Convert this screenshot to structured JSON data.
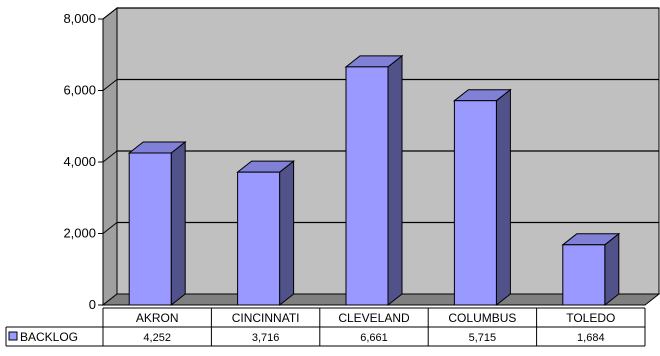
{
  "chart_data": {
    "type": "bar",
    "title": "",
    "xlabel": "",
    "ylabel": "",
    "categories": [
      "AKRON",
      "CINCINNATI",
      "CLEVELAND",
      "COLUMBUS",
      "TOLEDO"
    ],
    "series": [
      {
        "name": "BACKLOG",
        "values": [
          4252,
          3716,
          6661,
          5715,
          1684
        ]
      }
    ],
    "value_labels": [
      "4,252",
      "3,716",
      "6,661",
      "5,715",
      "1,684"
    ],
    "ylim": [
      0,
      8000
    ],
    "yticks": [
      0,
      2000,
      4000,
      6000,
      8000
    ],
    "ytick_labels": [
      "0",
      "2,000",
      "4,000",
      "6,000",
      "8,000"
    ],
    "grid": true,
    "legend_position": "data-table",
    "data_table": true,
    "colors": {
      "bar_front": "#9999ff",
      "bar_side": "#52528a",
      "bar_top": "#8080d6",
      "wall": "#c0c0c0",
      "floor": "#808080",
      "gridline": "#000000"
    }
  }
}
